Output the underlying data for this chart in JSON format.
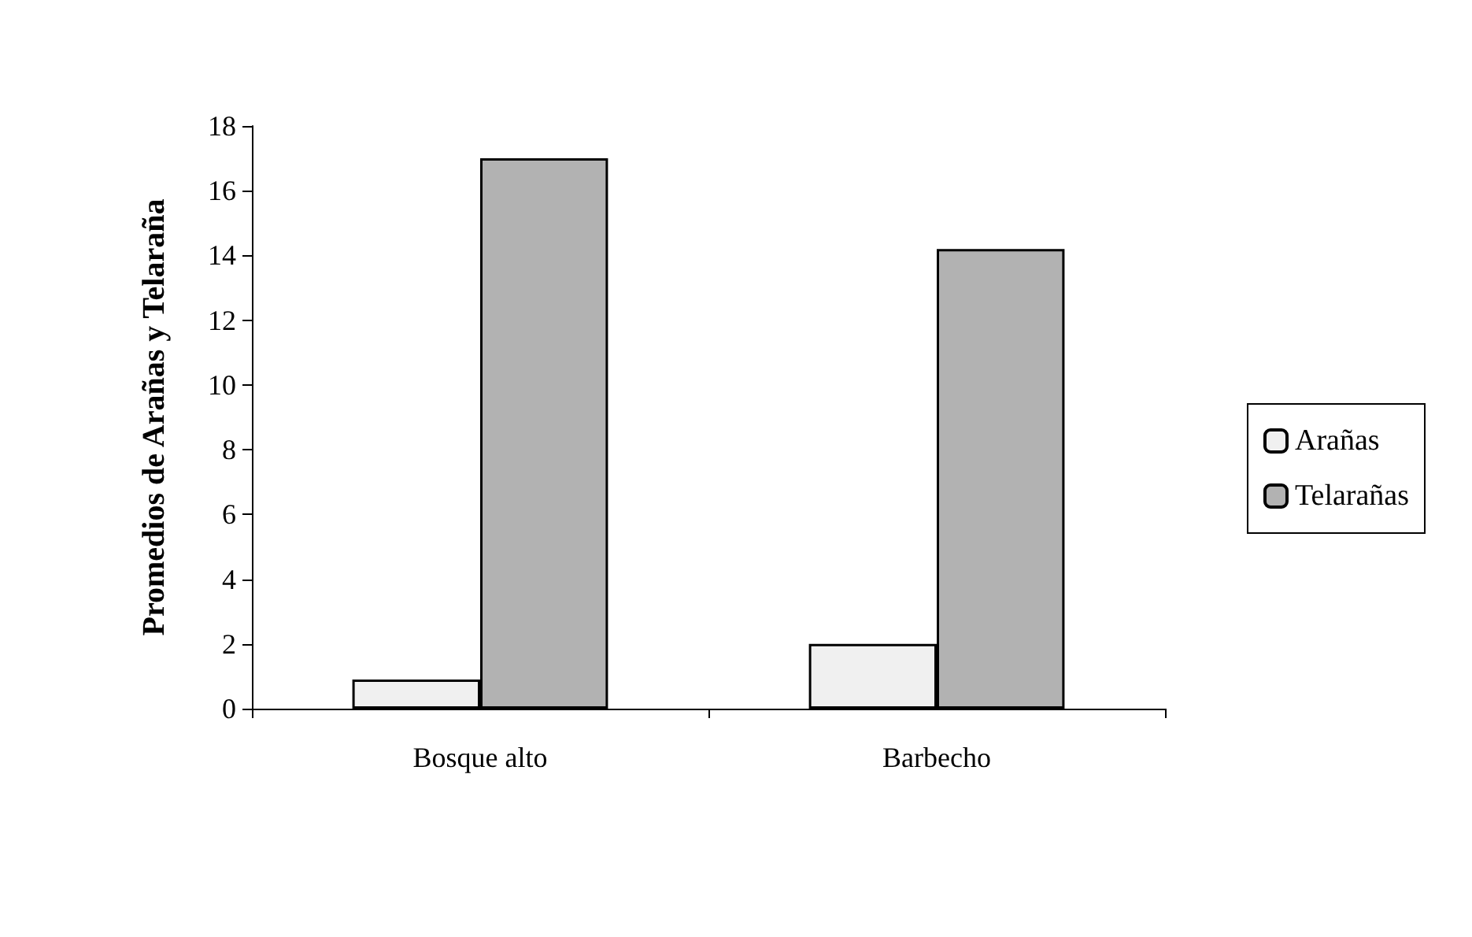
{
  "chart_data": {
    "type": "bar",
    "ylabel": "Promedios de Arañas y Telaraña",
    "categories": [
      "Bosque alto",
      "Barbecho"
    ],
    "series": [
      {
        "name": "Arañas",
        "color": "#f0f0f0",
        "values": [
          0.9,
          2.0
        ]
      },
      {
        "name": "Telarañas",
        "color": "#b2b2b2",
        "values": [
          17.0,
          14.2
        ]
      }
    ],
    "ylim": [
      0,
      18
    ],
    "yticks": [
      0,
      2,
      4,
      6,
      8,
      10,
      12,
      14,
      16,
      18
    ],
    "grid": false,
    "legend": "right"
  }
}
